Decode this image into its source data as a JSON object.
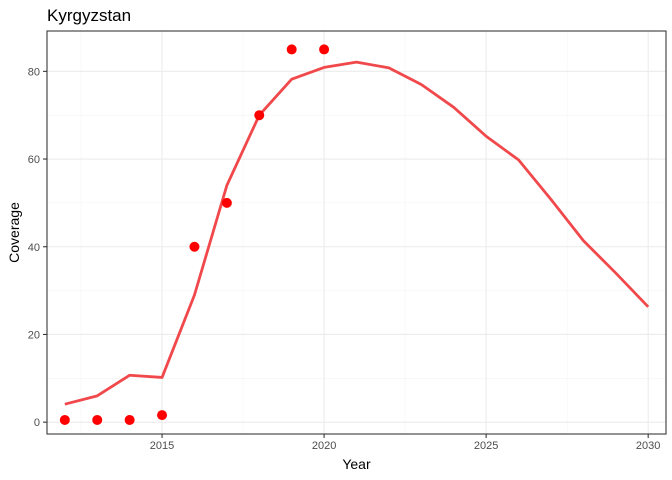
{
  "chart_data": {
    "type": "line",
    "title": "Kyrgyzstan",
    "xlabel": "Year",
    "ylabel": "Coverage",
    "xlim": [
      2011.45,
      2030.55
    ],
    "ylim": [
      -2.7,
      89.2
    ],
    "x_ticks": [
      2015,
      2020,
      2025,
      2030
    ],
    "y_ticks": [
      0,
      20,
      40,
      60,
      80
    ],
    "grid": true,
    "legend": "none",
    "series": [
      {
        "type": "line",
        "color": "#f0484b",
        "x": [
          2012,
          2013,
          2014,
          2015,
          2016,
          2017,
          2018,
          2019,
          2020,
          2021,
          2022,
          2023,
          2024,
          2025,
          2026,
          2027,
          2028,
          2029,
          2030
        ],
        "y": [
          4.1,
          6.0,
          10.7,
          10.2,
          29.0,
          54.0,
          70.0,
          78.2,
          80.9,
          82.1,
          80.8,
          77.0,
          71.8,
          65.2,
          59.8,
          50.8,
          41.4,
          34.0,
          26.3
        ]
      },
      {
        "type": "scatter",
        "color": "#ff0000",
        "x": [
          2012,
          2013,
          2014,
          2015,
          2016,
          2017,
          2018,
          2019,
          2020
        ],
        "y": [
          0.5,
          0.5,
          0.5,
          1.6,
          40,
          50,
          70,
          85,
          85
        ]
      }
    ]
  }
}
